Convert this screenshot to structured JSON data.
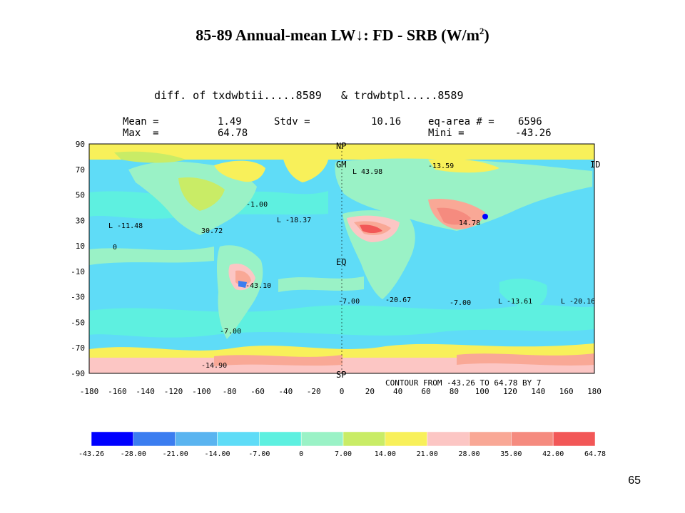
{
  "slide": {
    "title_prefix": "85-89 Annual-mean LW↓: FD - SRB (W/m",
    "title_sup": "2",
    "title_suffix": ")",
    "page_number": "65"
  },
  "plot": {
    "header": "diff. of txdwbtii.....8589   & trdwbtpl.....8589",
    "stats": {
      "mean_label": "Mean =",
      "mean_value": "1.49",
      "stdv_label": "Stdv =",
      "stdv_value": "10.16",
      "eqarea_label": "eq-area # =",
      "eqarea_value": "6596",
      "max_label": "Max  =",
      "max_value": "64.78",
      "min_label": "Mini =",
      "min_value": "-43.26"
    },
    "y_ticks": [
      "90",
      "70",
      "50",
      "30",
      "10",
      "-10",
      "-30",
      "-50",
      "-70",
      "-90"
    ],
    "x_ticks": [
      "-180",
      "-160",
      "-140",
      "-120",
      "-100",
      "-80",
      "-60",
      "-40",
      "-20",
      "0",
      "20",
      "40",
      "60",
      "80",
      "100",
      "120",
      "140",
      "160",
      "180"
    ],
    "map_labels": {
      "np": "NP",
      "gm": "GM",
      "eq": "EQ",
      "sp": "SP",
      "id": "ID",
      "contour_note": "CONTOUR FROM -43.26 TO 64.78 BY 7"
    },
    "annotations": [
      "L -11.48",
      "L -18.37",
      "-1.00",
      "30.72",
      "-43.10",
      "0",
      "-7.00",
      "-20.67",
      "-7.00",
      "L -13.61",
      "L -20.16",
      "14.78",
      "-14.90",
      "-7.00",
      "L 43.98",
      "-13.59"
    ],
    "colorbar": {
      "colors": [
        "#0000ff",
        "#3b7df0",
        "#5ab4f0",
        "#5fdcf7",
        "#5ef0e0",
        "#9af2c6",
        "#c9ec66",
        "#f8f05a",
        "#fcc6c4",
        "#f9a896",
        "#f58b7f",
        "#f25757"
      ],
      "tick_labels": [
        "-43.26",
        "-28.00",
        "-21.00",
        "-14.00",
        "-7.00",
        "0",
        "7.00",
        "14.00",
        "21.00",
        "28.00",
        "35.00",
        "42.00",
        "64.78"
      ]
    }
  }
}
